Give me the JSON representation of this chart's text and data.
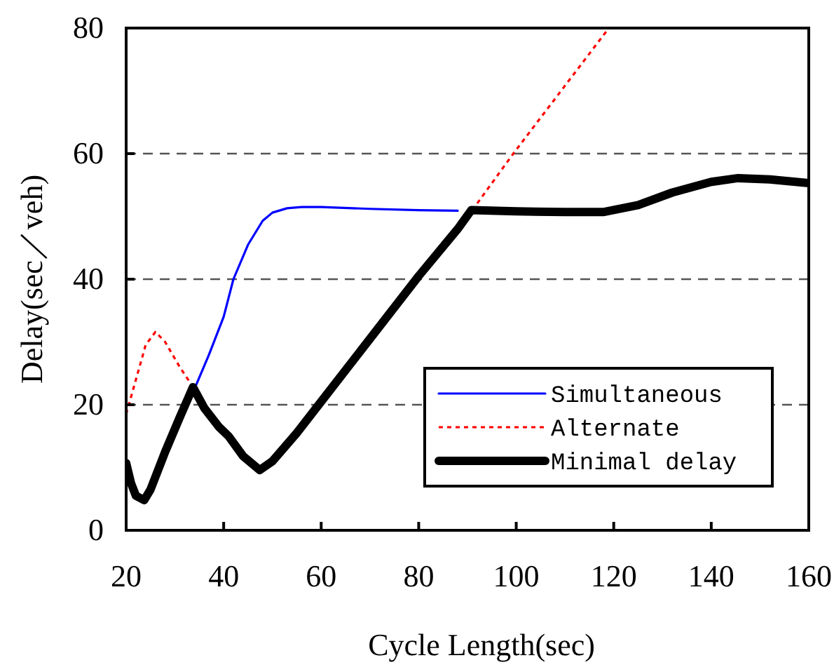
{
  "chart_data": {
    "type": "line",
    "xlabel": "Cycle Length(sec)",
    "ylabel": "Delay(sec／veh)",
    "xlim": [
      20,
      160
    ],
    "xticks": [
      20,
      40,
      60,
      80,
      100,
      120,
      140,
      160
    ],
    "ylim": [
      0,
      80
    ],
    "yticks": [
      0,
      20,
      40,
      60,
      80
    ],
    "grid": "y",
    "legend": "right",
    "series": [
      {
        "name": "Simultaneous",
        "color": "#0000ff",
        "line_style": "solid",
        "x": [
          34,
          37,
          40,
          42,
          45,
          48,
          50,
          53,
          56,
          60,
          70,
          80,
          88
        ],
        "values": [
          22.5,
          28,
          34,
          40,
          45.5,
          49.3,
          50.6,
          51.3,
          51.5,
          51.5,
          51.2,
          51,
          50.9
        ]
      },
      {
        "name": "Alternate",
        "color": "#ff0000",
        "line_style": "dotted",
        "x": [
          20,
          22,
          24,
          26,
          28,
          31,
          34,
          null,
          91,
          99.4,
          119
        ],
        "values": [
          18.5,
          24,
          29.5,
          31.6,
          30,
          26,
          22.5,
          null,
          51,
          60,
          80
        ]
      },
      {
        "name": "Minimal delay",
        "color": "#000000",
        "line_style": "solid",
        "x": [
          20,
          21,
          22,
          23.7,
          25,
          28,
          31,
          33.7,
          36,
          39,
          41,
          44,
          47.4,
          50,
          55,
          60,
          70,
          80,
          88,
          90.8,
          100,
          110,
          118,
          125,
          132,
          140,
          145.5,
          152,
          160
        ],
        "values": [
          10.7,
          7.5,
          5.5,
          4.8,
          6.5,
          12.5,
          18,
          22.8,
          19.5,
          16.5,
          15,
          11.8,
          9.6,
          11,
          15.5,
          20.5,
          30.5,
          40.5,
          48,
          51,
          50.8,
          50.7,
          50.7,
          51.8,
          53.8,
          55.5,
          56.1,
          55.9,
          55.3
        ]
      }
    ]
  }
}
